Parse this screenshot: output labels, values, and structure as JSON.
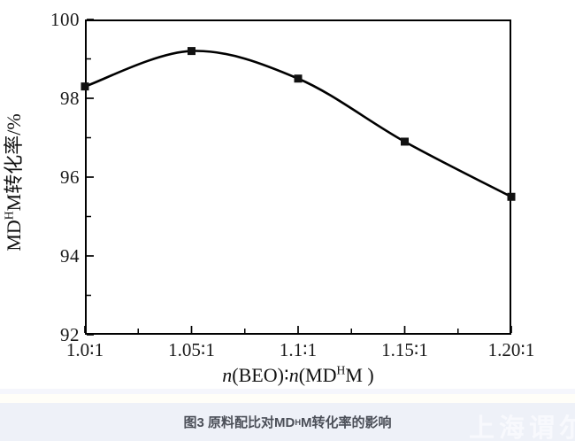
{
  "accent_colors": {
    "plot_line": "#000000",
    "marker_fill": "#111111",
    "caption_text": "#4b4f58",
    "caption_band_bg": "#eef1f8",
    "watermark_text": "#f8f9fd"
  },
  "axes": {
    "y": {
      "title_prefix": "MD",
      "title_sup": "H",
      "title_suffix": "M转化率/%"
    },
    "x": {
      "title_n1": "n",
      "title_p1": "(BEO)∶",
      "title_n2": "n",
      "title_p2": "(MD",
      "title_sup": "H",
      "title_p3": "M )"
    }
  },
  "caption": {
    "prefix": "图3 原料配比对MD",
    "sup": "H",
    "suffix": "M转化率的影响"
  },
  "watermark": {
    "text": "上海谓尔"
  },
  "chart_data": {
    "type": "line",
    "title": "",
    "xlabel": "n(BEO)∶n(MDᴴM)",
    "ylabel": "MDᴴM转化率/%",
    "x": [
      1.0,
      1.05,
      1.1,
      1.15,
      1.2
    ],
    "y": [
      98.3,
      99.2,
      98.5,
      96.9,
      95.5
    ],
    "xticklabels": [
      "1.0∶1",
      "1.05∶1",
      "1.1∶1",
      "1.15∶1",
      "1.20∶1"
    ],
    "yticks": [
      92,
      94,
      96,
      98,
      100
    ],
    "xlim": [
      1.0,
      1.2
    ],
    "ylim": [
      92,
      100
    ],
    "minor_ticks": "midpoints",
    "grid": false,
    "legend": "none",
    "marker": "filled-square",
    "line_color": "#000000"
  }
}
